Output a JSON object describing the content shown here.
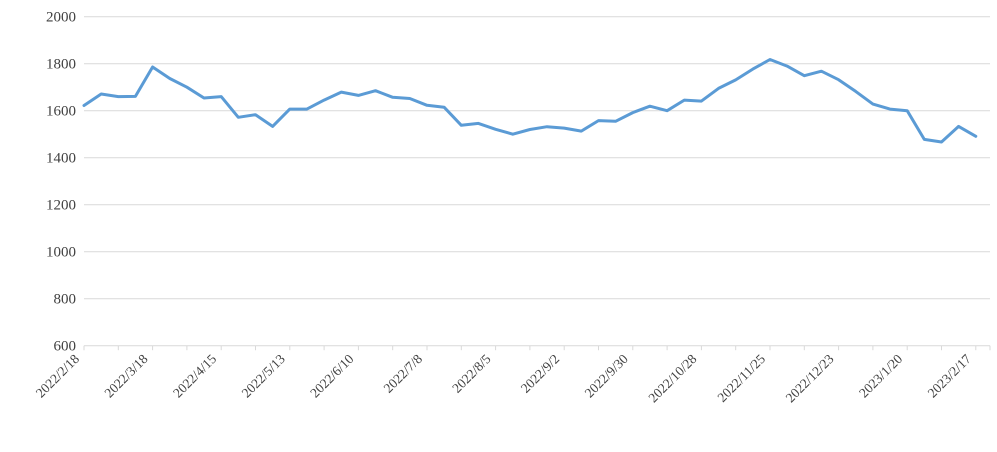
{
  "chart_data": {
    "type": "line",
    "title": "",
    "xlabel": "",
    "ylabel": "",
    "legend": "none",
    "grid": "horizontal",
    "ylim": [
      600,
      2000
    ],
    "ytick_step": 200,
    "y_tick_labels": [
      "600",
      "800",
      "1000",
      "1200",
      "1400",
      "1600",
      "1800",
      "2000"
    ],
    "x_label_every": 4,
    "x_tick_every": 2,
    "x_tick_labels_shown": [
      "2022/2/18",
      "2022/3/18",
      "2022/4/15",
      "2022/5/13",
      "2022/6/10",
      "2022/7/8",
      "2022/8/5",
      "2022/9/2",
      "2022/9/30",
      "2022/10/28",
      "2022/11/25",
      "2022/12/23",
      "2023/1/20",
      "2023/2/17"
    ],
    "x": [
      "2022/2/18",
      "2022/2/25",
      "2022/3/4",
      "2022/3/11",
      "2022/3/18",
      "2022/3/25",
      "2022/4/1",
      "2022/4/8",
      "2022/4/15",
      "2022/4/22",
      "2022/4/29",
      "2022/5/6",
      "2022/5/13",
      "2022/5/20",
      "2022/5/27",
      "2022/6/3",
      "2022/6/10",
      "2022/6/17",
      "2022/6/24",
      "2022/7/1",
      "2022/7/8",
      "2022/7/15",
      "2022/7/22",
      "2022/7/29",
      "2022/8/5",
      "2022/8/12",
      "2022/8/19",
      "2022/8/26",
      "2022/9/2",
      "2022/9/9",
      "2022/9/16",
      "2022/9/23",
      "2022/9/30",
      "2022/10/7",
      "2022/10/14",
      "2022/10/21",
      "2022/10/28",
      "2022/11/4",
      "2022/11/11",
      "2022/11/18",
      "2022/11/25",
      "2022/12/2",
      "2022/12/9",
      "2022/12/16",
      "2022/12/23",
      "2022/12/30",
      "2023/1/6",
      "2023/1/13",
      "2023/1/20",
      "2023/1/27",
      "2023/2/3",
      "2023/2/10",
      "2023/2/17"
    ],
    "series": [
      {
        "name": "series-1",
        "values": [
          1622,
          1671,
          1660,
          1661,
          1786,
          1737,
          1700,
          1654,
          1660,
          1572,
          1583,
          1533,
          1607,
          1607,
          1645,
          1679,
          1665,
          1685,
          1657,
          1652,
          1623,
          1615,
          1538,
          1546,
          1521,
          1500,
          1520,
          1532,
          1526,
          1513,
          1558,
          1555,
          1592,
          1619,
          1600,
          1645,
          1641,
          1695,
          1731,
          1777,
          1818,
          1790,
          1749,
          1768,
          1732,
          1682,
          1628,
          1607,
          1600,
          1478,
          1467,
          1533,
          1491
        ]
      }
    ],
    "colors": {
      "line": "#5b9bd5",
      "gridline": "#d9d9d9",
      "axis": "#d9d9d9",
      "tick": "#d9d9d9",
      "label_text": "#404040"
    }
  }
}
